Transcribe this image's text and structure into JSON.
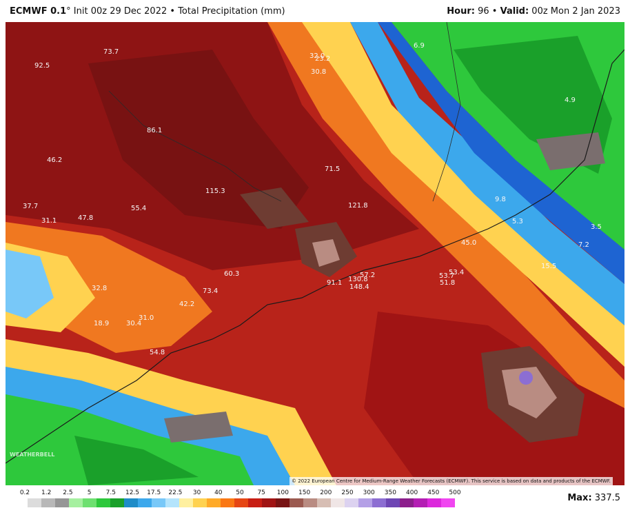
{
  "header": {
    "model": "ECMWF 0.1",
    "degree": "°",
    "init": "Init 00z 29 Dec 2022",
    "product": "Total Precipitation (mm)",
    "hour_label": "Hour:",
    "hour": "96",
    "valid_label": "Valid:",
    "valid": "00z Mon 2 Jan 2023"
  },
  "credit": "© 2022 European Centre for Medium-Range Weather Forecasts (ECMWF). This service is based on data and products of the ECMWF.",
  "watermark": "WEATHERBELL",
  "max": {
    "label": "Max:",
    "value": "337.5"
  },
  "legend": {
    "ticks": [
      "0.2",
      "1.2",
      "2.5",
      "5",
      "7.5",
      "12.5",
      "17.5",
      "22.5",
      "30",
      "40",
      "50",
      "75",
      "100",
      "150",
      "200",
      "250",
      "300",
      "350",
      "400",
      "450",
      "500"
    ],
    "colors": [
      "#ffffff",
      "#dcdcdc",
      "#b8b8b8",
      "#969696",
      "#a6f0a0",
      "#6ee070",
      "#2ec83c",
      "#1aa02a",
      "#1e8cc8",
      "#3ca8ec",
      "#78c8f8",
      "#b4e4fc",
      "#fff0a0",
      "#ffd250",
      "#ffaa28",
      "#fa7814",
      "#e64614",
      "#c81e14",
      "#a01414",
      "#781414",
      "#9b5a50",
      "#b98c82",
      "#d7beb4",
      "#f0e6e6",
      "#dcd2f0",
      "#b4a0e6",
      "#8c6ed2",
      "#6e46b4",
      "#8c1e8c",
      "#b41eb4",
      "#dc28dc",
      "#f046f0"
    ]
  },
  "map_labels": [
    {
      "text": "92.5"
    },
    {
      "text": "73.7"
    },
    {
      "text": "32.0"
    },
    {
      "text": "23.2"
    },
    {
      "text": "30.8"
    },
    {
      "text": "6.9"
    },
    {
      "text": "4.9"
    },
    {
      "text": "86.1"
    },
    {
      "text": "46.2"
    },
    {
      "text": "71.5"
    },
    {
      "text": "115.3"
    },
    {
      "text": "121.8"
    },
    {
      "text": "37.7"
    },
    {
      "text": "55.4"
    },
    {
      "text": "31.1"
    },
    {
      "text": "47.8"
    },
    {
      "text": "9.8"
    },
    {
      "text": "5.3"
    },
    {
      "text": "3.5"
    },
    {
      "text": "7.2"
    },
    {
      "text": "45.0"
    },
    {
      "text": "15.5"
    },
    {
      "text": "60.3"
    },
    {
      "text": "32.8"
    },
    {
      "text": "73.4"
    },
    {
      "text": "91.1"
    },
    {
      "text": "130.8"
    },
    {
      "text": "57.2"
    },
    {
      "text": "148.4"
    },
    {
      "text": "53.7"
    },
    {
      "text": "53.4"
    },
    {
      "text": "51.8"
    },
    {
      "text": "42.2"
    },
    {
      "text": "18.9"
    },
    {
      "text": "30.4"
    },
    {
      "text": "31.0"
    },
    {
      "text": "54.8"
    }
  ]
}
